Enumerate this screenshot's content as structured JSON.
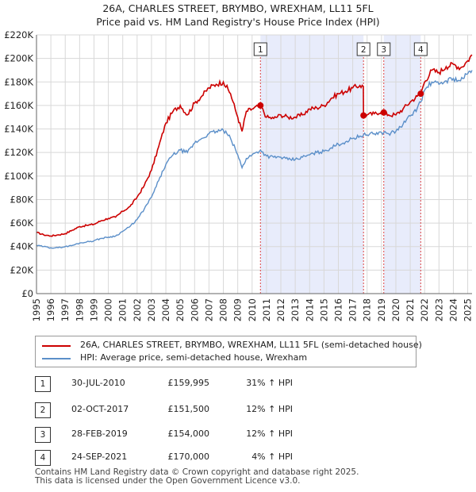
{
  "title_line1": "26A, CHARLES STREET, BRYMBO, WREXHAM, LL11 5FL",
  "title_line2": "Price paid vs. HM Land Registry's House Price Index (HPI)",
  "legend": {
    "property_label": "26A, CHARLES STREET, BRYMBO, WREXHAM, LL11 5FL (semi-detached house)",
    "hpi_label": "HPI: Average price, semi-detached house, Wrexham"
  },
  "colors": {
    "property": "#cc0000",
    "hpi": "#5b8fc9",
    "shade": "#e8ecfb",
    "vline": "#dd4444"
  },
  "transactions": [
    {
      "num": "1",
      "date": "30-JUL-2010",
      "price": "£159,995",
      "hpi": "31% ↑ HPI"
    },
    {
      "num": "2",
      "date": "02-OCT-2017",
      "price": "£151,500",
      "hpi": "12% ↑ HPI"
    },
    {
      "num": "3",
      "date": "28-FEB-2019",
      "price": "£154,000",
      "hpi": "12% ↑ HPI"
    },
    {
      "num": "4",
      "date": "24-SEP-2021",
      "price": "£170,000",
      "hpi": "4% ↑ HPI"
    }
  ],
  "footer_line1": "Contains HM Land Registry data © Crown copyright and database right 2025.",
  "footer_line2": "This data is licensed under the Open Government Licence v3.0.",
  "chart_data": {
    "type": "line",
    "title": "26A, CHARLES STREET, BRYMBO, WREXHAM, LL11 5FL — Price paid vs. HM Land Registry's House Price Index (HPI)",
    "xlabel": "",
    "ylabel": "",
    "xlim": [
      1995,
      2025.3
    ],
    "ylim": [
      0,
      220000
    ],
    "x_ticks": [
      "1995",
      "1996",
      "1997",
      "1998",
      "1999",
      "2000",
      "2001",
      "2002",
      "2003",
      "2004",
      "2005",
      "2006",
      "2007",
      "2008",
      "2009",
      "2010",
      "2011",
      "2012",
      "2013",
      "2014",
      "2015",
      "2016",
      "2017",
      "2018",
      "2019",
      "2020",
      "2021",
      "2022",
      "2023",
      "2024",
      "2025"
    ],
    "y_ticks": [
      {
        "value": 0,
        "label": "£0"
      },
      {
        "value": 20000,
        "label": "£20K"
      },
      {
        "value": 40000,
        "label": "£40K"
      },
      {
        "value": 60000,
        "label": "£60K"
      },
      {
        "value": 80000,
        "label": "£80K"
      },
      {
        "value": 100000,
        "label": "£100K"
      },
      {
        "value": 120000,
        "label": "£120K"
      },
      {
        "value": 140000,
        "label": "£140K"
      },
      {
        "value": 160000,
        "label": "£160K"
      },
      {
        "value": 180000,
        "label": "£180K"
      },
      {
        "value": 200000,
        "label": "£200K"
      },
      {
        "value": 220000,
        "label": "£220K"
      }
    ],
    "grid": true,
    "shaded_ranges": [
      [
        2010.58,
        2017.75
      ],
      [
        2019.16,
        2021.73
      ]
    ],
    "series": [
      {
        "name": "26A, CHARLES STREET, BRYMBO, WREXHAM, LL11 5FL (semi-detached house)",
        "x": [
          1995.0,
          1995.5,
          1996.0,
          1996.5,
          1997.0,
          1997.5,
          1998.0,
          1998.5,
          1999.0,
          1999.5,
          2000.0,
          2000.5,
          2001.0,
          2001.5,
          2002.0,
          2002.5,
          2003.0,
          2003.5,
          2004.0,
          2004.5,
          2005.0,
          2005.5,
          2006.0,
          2006.5,
          2007.0,
          2007.5,
          2008.0,
          2008.5,
          2009.0,
          2009.3,
          2009.6,
          2010.0,
          2010.58,
          2011.0,
          2011.5,
          2012.0,
          2012.5,
          2013.0,
          2013.5,
          2014.0,
          2014.5,
          2015.0,
          2015.5,
          2016.0,
          2016.5,
          2017.0,
          2017.5,
          2017.74,
          2017.75,
          2018.0,
          2018.5,
          2019.0,
          2019.16,
          2019.5,
          2020.0,
          2020.5,
          2021.0,
          2021.5,
          2021.73,
          2022.0,
          2022.5,
          2023.0,
          2023.5,
          2024.0,
          2024.5,
          2025.0,
          2025.3
        ],
        "values": [
          52000,
          50000,
          49000,
          50000,
          51000,
          54000,
          57000,
          58000,
          59000,
          62000,
          64000,
          65000,
          70000,
          74000,
          82000,
          92000,
          105000,
          125000,
          145000,
          155000,
          160000,
          152000,
          162000,
          168000,
          175000,
          178000,
          180000,
          170000,
          150000,
          138000,
          155000,
          157000,
          159995,
          150000,
          149000,
          152000,
          150000,
          150000,
          152000,
          157000,
          158000,
          160000,
          166000,
          170000,
          172000,
          175000,
          177000,
          176000,
          151500,
          152000,
          153000,
          155000,
          154000,
          152000,
          152000,
          157000,
          163000,
          168000,
          170000,
          180000,
          190000,
          188000,
          193000,
          195000,
          192000,
          198000,
          203000
        ]
      },
      {
        "name": "HPI: Average price, semi-detached house, Wrexham",
        "x": [
          1995.0,
          1995.5,
          1996.0,
          1996.5,
          1997.0,
          1997.5,
          1998.0,
          1998.5,
          1999.0,
          1999.5,
          2000.0,
          2000.5,
          2001.0,
          2001.5,
          2002.0,
          2002.5,
          2003.0,
          2003.5,
          2004.0,
          2004.5,
          2005.0,
          2005.5,
          2006.0,
          2006.5,
          2007.0,
          2007.5,
          2008.0,
          2008.5,
          2009.0,
          2009.3,
          2009.6,
          2010.0,
          2010.58,
          2011.0,
          2011.5,
          2012.0,
          2012.5,
          2013.0,
          2013.5,
          2014.0,
          2014.5,
          2015.0,
          2015.5,
          2016.0,
          2016.5,
          2017.0,
          2017.5,
          2017.75,
          2018.0,
          2018.5,
          2019.0,
          2019.16,
          2019.5,
          2020.0,
          2020.5,
          2021.0,
          2021.5,
          2021.73,
          2022.0,
          2022.5,
          2023.0,
          2023.5,
          2024.0,
          2024.5,
          2025.0,
          2025.3
        ],
        "values": [
          41000,
          40000,
          39000,
          39000,
          40000,
          41000,
          43000,
          44000,
          45000,
          47000,
          48000,
          49000,
          53000,
          57000,
          63000,
          72000,
          82000,
          96000,
          110000,
          118000,
          122000,
          120000,
          128000,
          132000,
          136000,
          138000,
          139000,
          132000,
          118000,
          107000,
          115000,
          118000,
          122000,
          117000,
          116000,
          116000,
          114000,
          114000,
          116000,
          118000,
          120000,
          121000,
          124000,
          127000,
          129000,
          132000,
          134000,
          135000,
          135000,
          136000,
          137000,
          137000,
          136000,
          138000,
          144000,
          151000,
          158000,
          163000,
          173000,
          180000,
          178000,
          181000,
          183000,
          181000,
          187000,
          190000
        ]
      }
    ],
    "sale_points": [
      {
        "label": "1",
        "x": 2010.58,
        "y": 159995
      },
      {
        "label": "2",
        "x": 2017.75,
        "y": 151500
      },
      {
        "label": "3",
        "x": 2019.16,
        "y": 154000
      },
      {
        "label": "4",
        "x": 2021.73,
        "y": 170000
      }
    ]
  }
}
